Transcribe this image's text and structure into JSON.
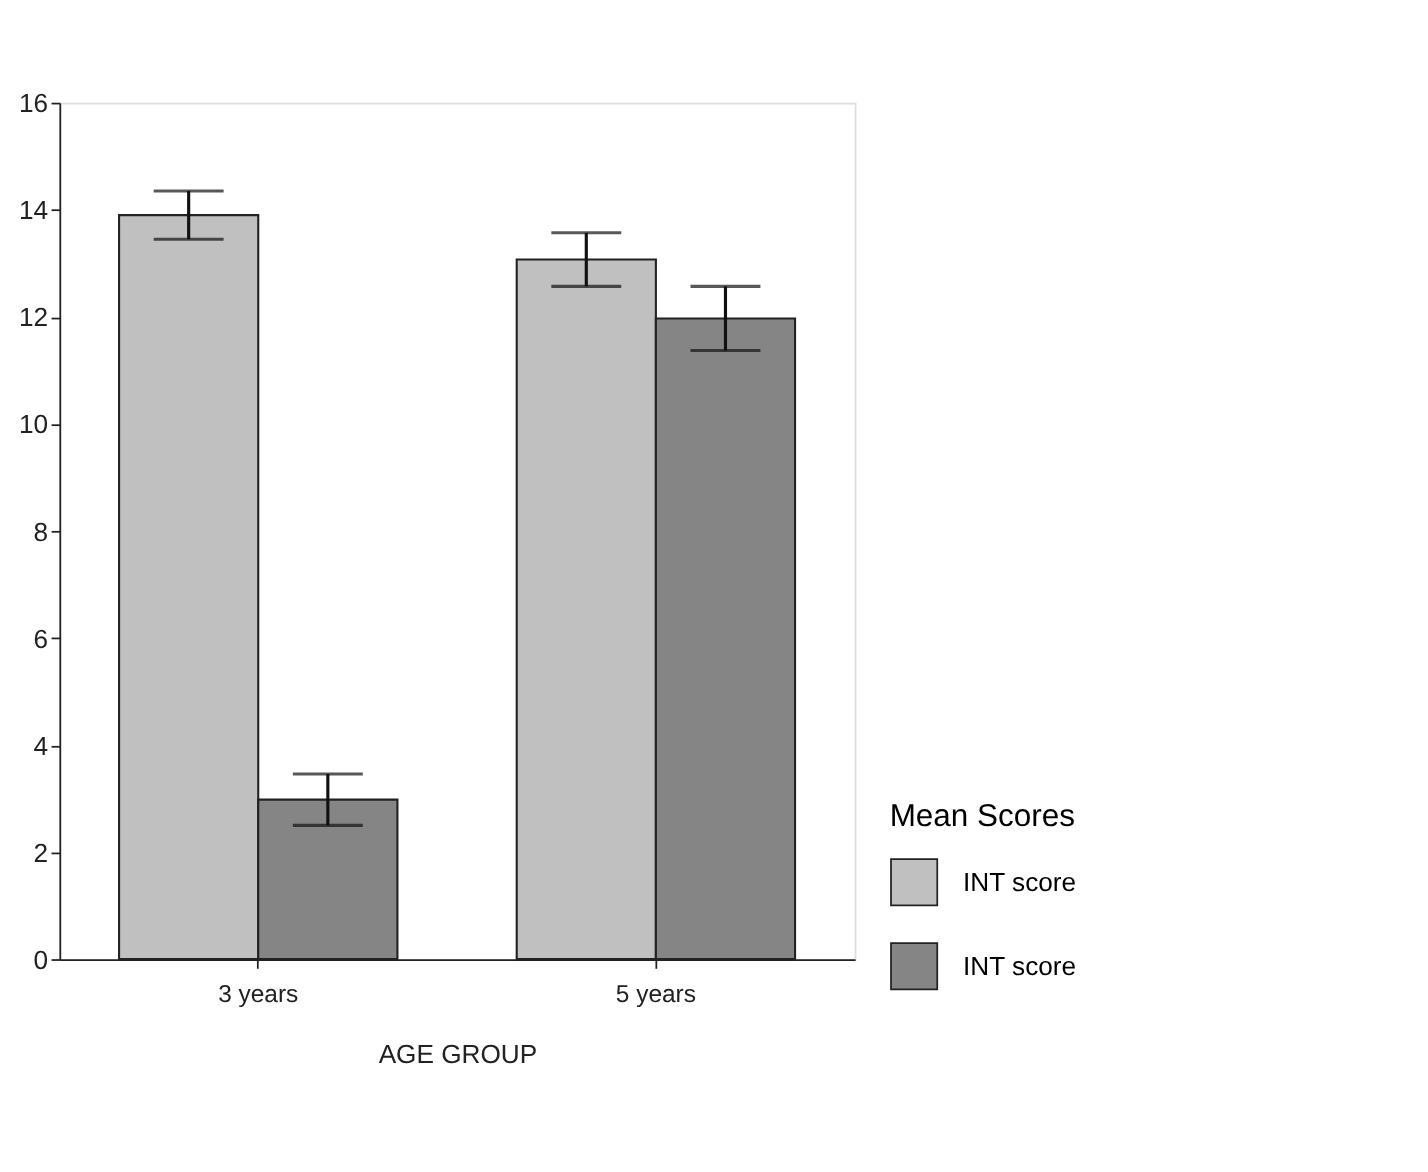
{
  "chart_data": {
    "type": "bar",
    "xlabel": "AGE GROUP",
    "legend_title": "Mean Scores",
    "categories": [
      "3 years",
      "5 years"
    ],
    "series": [
      {
        "name": "INT score",
        "color": "#c0c0c0",
        "values": [
          13.9,
          13.07
        ],
        "errors": [
          0.45,
          0.5
        ]
      },
      {
        "name": "INT score",
        "color": "#858585",
        "values": [
          2.98,
          11.97
        ],
        "errors": [
          0.48,
          0.6
        ]
      }
    ],
    "ylim": [
      0,
      16
    ],
    "yticks": [
      0,
      2,
      4,
      6,
      8,
      10,
      12,
      14,
      16
    ],
    "grid": false,
    "legend": "bottom right"
  }
}
